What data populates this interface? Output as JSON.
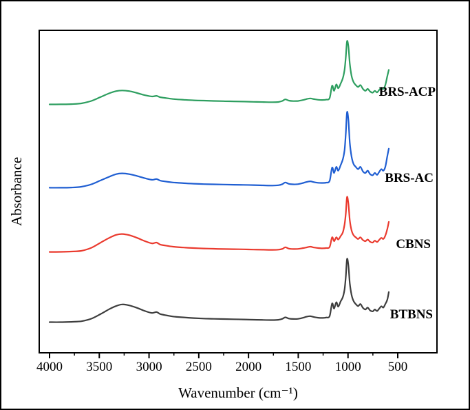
{
  "figure": {
    "background": "#ffffff",
    "border_color": "#000000",
    "axis_color": "#000000"
  },
  "chart_data": {
    "type": "line",
    "title": "",
    "xlabel": "Wavenumber (cm⁻¹)",
    "ylabel": "Absorbance",
    "x_axis": {
      "major_ticks": [
        4000,
        3500,
        3000,
        2500,
        2000,
        1500,
        1000,
        500
      ],
      "minor_ticks": [
        3750,
        3250,
        2750,
        2250,
        1750,
        1250,
        750
      ],
      "reversed": true,
      "range_displayed": [
        4100,
        100
      ],
      "grid": false
    },
    "y_axis": {
      "ticks": [],
      "style": "stacked spectra with vertical offsets, arbitrary absorbance units"
    },
    "legend": "inline labels at right end of each curve",
    "series": [
      {
        "name": "BRS-ACP",
        "color": "#2d9e5f",
        "points": [
          [
            4000,
            0.005
          ],
          [
            3890,
            0.006
          ],
          [
            3780,
            0.01
          ],
          [
            3680,
            0.022
          ],
          [
            3580,
            0.06
          ],
          [
            3490,
            0.12
          ],
          [
            3400,
            0.18
          ],
          [
            3330,
            0.215
          ],
          [
            3270,
            0.225
          ],
          [
            3200,
            0.215
          ],
          [
            3120,
            0.185
          ],
          [
            3040,
            0.15
          ],
          [
            2970,
            0.13
          ],
          [
            2925,
            0.14
          ],
          [
            2890,
            0.12
          ],
          [
            2850,
            0.11
          ],
          [
            2760,
            0.09
          ],
          [
            2650,
            0.078
          ],
          [
            2550,
            0.07
          ],
          [
            2450,
            0.065
          ],
          [
            2350,
            0.06
          ],
          [
            2250,
            0.056
          ],
          [
            2150,
            0.053
          ],
          [
            2050,
            0.05
          ],
          [
            1950,
            0.046
          ],
          [
            1850,
            0.042
          ],
          [
            1760,
            0.04
          ],
          [
            1700,
            0.044
          ],
          [
            1660,
            0.06
          ],
          [
            1630,
            0.085
          ],
          [
            1595,
            0.065
          ],
          [
            1550,
            0.058
          ],
          [
            1500,
            0.06
          ],
          [
            1450,
            0.075
          ],
          [
            1420,
            0.088
          ],
          [
            1380,
            0.1
          ],
          [
            1340,
            0.088
          ],
          [
            1300,
            0.078
          ],
          [
            1260,
            0.075
          ],
          [
            1220,
            0.08
          ],
          [
            1185,
            0.105
          ],
          [
            1160,
            0.3
          ],
          [
            1140,
            0.22
          ],
          [
            1118,
            0.32
          ],
          [
            1098,
            0.26
          ],
          [
            1075,
            0.33
          ],
          [
            1052,
            0.42
          ],
          [
            1035,
            0.55
          ],
          [
            1022,
            0.75
          ],
          [
            1010,
            1.0
          ],
          [
            996,
            0.92
          ],
          [
            982,
            0.65
          ],
          [
            965,
            0.46
          ],
          [
            945,
            0.36
          ],
          [
            922,
            0.31
          ],
          [
            898,
            0.28
          ],
          [
            875,
            0.31
          ],
          [
            850,
            0.25
          ],
          [
            825,
            0.22
          ],
          [
            802,
            0.25
          ],
          [
            778,
            0.21
          ],
          [
            752,
            0.19
          ],
          [
            730,
            0.22
          ],
          [
            708,
            0.195
          ],
          [
            688,
            0.23
          ],
          [
            665,
            0.27
          ],
          [
            645,
            0.25
          ],
          [
            625,
            0.31
          ],
          [
            605,
            0.45
          ],
          [
            590,
            0.55
          ]
        ]
      },
      {
        "name": "BRS-AC",
        "color": "#1f5ed2",
        "points": [
          [
            4000,
            0.005
          ],
          [
            3890,
            0.005
          ],
          [
            3780,
            0.008
          ],
          [
            3680,
            0.018
          ],
          [
            3580,
            0.05
          ],
          [
            3490,
            0.1
          ],
          [
            3400,
            0.15
          ],
          [
            3330,
            0.185
          ],
          [
            3270,
            0.195
          ],
          [
            3200,
            0.185
          ],
          [
            3120,
            0.16
          ],
          [
            3040,
            0.13
          ],
          [
            2970,
            0.11
          ],
          [
            2925,
            0.12
          ],
          [
            2890,
            0.1
          ],
          [
            2850,
            0.09
          ],
          [
            2760,
            0.075
          ],
          [
            2650,
            0.065
          ],
          [
            2550,
            0.058
          ],
          [
            2450,
            0.053
          ],
          [
            2350,
            0.05
          ],
          [
            2250,
            0.047
          ],
          [
            2150,
            0.045
          ],
          [
            2050,
            0.043
          ],
          [
            1950,
            0.04
          ],
          [
            1850,
            0.036
          ],
          [
            1760,
            0.034
          ],
          [
            1700,
            0.038
          ],
          [
            1660,
            0.052
          ],
          [
            1630,
            0.075
          ],
          [
            1595,
            0.056
          ],
          [
            1550,
            0.05
          ],
          [
            1500,
            0.053
          ],
          [
            1450,
            0.068
          ],
          [
            1420,
            0.08
          ],
          [
            1380,
            0.09
          ],
          [
            1340,
            0.078
          ],
          [
            1300,
            0.07
          ],
          [
            1260,
            0.068
          ],
          [
            1220,
            0.072
          ],
          [
            1185,
            0.095
          ],
          [
            1160,
            0.27
          ],
          [
            1140,
            0.2
          ],
          [
            1118,
            0.28
          ],
          [
            1098,
            0.23
          ],
          [
            1075,
            0.3
          ],
          [
            1052,
            0.38
          ],
          [
            1035,
            0.5
          ],
          [
            1022,
            0.72
          ],
          [
            1010,
            1.0
          ],
          [
            996,
            0.9
          ],
          [
            982,
            0.6
          ],
          [
            965,
            0.42
          ],
          [
            945,
            0.32
          ],
          [
            922,
            0.28
          ],
          [
            898,
            0.25
          ],
          [
            875,
            0.28
          ],
          [
            850,
            0.22
          ],
          [
            825,
            0.2
          ],
          [
            802,
            0.23
          ],
          [
            778,
            0.185
          ],
          [
            752,
            0.17
          ],
          [
            730,
            0.2
          ],
          [
            708,
            0.175
          ],
          [
            688,
            0.21
          ],
          [
            665,
            0.25
          ],
          [
            645,
            0.23
          ],
          [
            625,
            0.28
          ],
          [
            605,
            0.42
          ],
          [
            590,
            0.52
          ]
        ]
      },
      {
        "name": "CBNS",
        "color": "#ea3a2e",
        "points": [
          [
            4000,
            0.005
          ],
          [
            3890,
            0.006
          ],
          [
            3780,
            0.012
          ],
          [
            3680,
            0.025
          ],
          [
            3580,
            0.08
          ],
          [
            3490,
            0.17
          ],
          [
            3400,
            0.26
          ],
          [
            3330,
            0.315
          ],
          [
            3270,
            0.33
          ],
          [
            3200,
            0.31
          ],
          [
            3120,
            0.26
          ],
          [
            3040,
            0.2
          ],
          [
            2970,
            0.16
          ],
          [
            2925,
            0.175
          ],
          [
            2890,
            0.14
          ],
          [
            2850,
            0.125
          ],
          [
            2760,
            0.1
          ],
          [
            2650,
            0.085
          ],
          [
            2550,
            0.075
          ],
          [
            2450,
            0.068
          ],
          [
            2350,
            0.062
          ],
          [
            2250,
            0.058
          ],
          [
            2150,
            0.055
          ],
          [
            2050,
            0.052
          ],
          [
            1950,
            0.048
          ],
          [
            1850,
            0.045
          ],
          [
            1760,
            0.042
          ],
          [
            1700,
            0.046
          ],
          [
            1660,
            0.06
          ],
          [
            1630,
            0.09
          ],
          [
            1595,
            0.065
          ],
          [
            1550,
            0.058
          ],
          [
            1500,
            0.06
          ],
          [
            1450,
            0.075
          ],
          [
            1420,
            0.085
          ],
          [
            1380,
            0.1
          ],
          [
            1340,
            0.085
          ],
          [
            1300,
            0.075
          ],
          [
            1260,
            0.07
          ],
          [
            1220,
            0.075
          ],
          [
            1185,
            0.095
          ],
          [
            1160,
            0.27
          ],
          [
            1140,
            0.2
          ],
          [
            1118,
            0.27
          ],
          [
            1098,
            0.23
          ],
          [
            1075,
            0.29
          ],
          [
            1052,
            0.36
          ],
          [
            1035,
            0.5
          ],
          [
            1022,
            0.7
          ],
          [
            1010,
            1.0
          ],
          [
            996,
            0.88
          ],
          [
            982,
            0.58
          ],
          [
            965,
            0.4
          ],
          [
            945,
            0.31
          ],
          [
            922,
            0.27
          ],
          [
            898,
            0.24
          ],
          [
            875,
            0.27
          ],
          [
            850,
            0.22
          ],
          [
            825,
            0.2
          ],
          [
            802,
            0.23
          ],
          [
            778,
            0.19
          ],
          [
            752,
            0.175
          ],
          [
            730,
            0.21
          ],
          [
            708,
            0.185
          ],
          [
            688,
            0.22
          ],
          [
            665,
            0.26
          ],
          [
            645,
            0.24
          ],
          [
            625,
            0.3
          ],
          [
            605,
            0.42
          ],
          [
            590,
            0.55
          ]
        ]
      },
      {
        "name": "BTBNS",
        "color": "#3d3d3d",
        "points": [
          [
            4000,
            0.005
          ],
          [
            3890,
            0.005
          ],
          [
            3780,
            0.01
          ],
          [
            3680,
            0.02
          ],
          [
            3580,
            0.06
          ],
          [
            3490,
            0.13
          ],
          [
            3400,
            0.21
          ],
          [
            3330,
            0.26
          ],
          [
            3270,
            0.285
          ],
          [
            3200,
            0.27
          ],
          [
            3120,
            0.23
          ],
          [
            3040,
            0.18
          ],
          [
            2970,
            0.15
          ],
          [
            2925,
            0.165
          ],
          [
            2890,
            0.135
          ],
          [
            2850,
            0.12
          ],
          [
            2760,
            0.095
          ],
          [
            2650,
            0.08
          ],
          [
            2550,
            0.07
          ],
          [
            2450,
            0.062
          ],
          [
            2350,
            0.058
          ],
          [
            2250,
            0.054
          ],
          [
            2150,
            0.051
          ],
          [
            2050,
            0.048
          ],
          [
            1950,
            0.044
          ],
          [
            1850,
            0.04
          ],
          [
            1760,
            0.038
          ],
          [
            1700,
            0.042
          ],
          [
            1660,
            0.058
          ],
          [
            1630,
            0.082
          ],
          [
            1595,
            0.062
          ],
          [
            1550,
            0.055
          ],
          [
            1500,
            0.058
          ],
          [
            1450,
            0.075
          ],
          [
            1420,
            0.09
          ],
          [
            1380,
            0.1
          ],
          [
            1340,
            0.085
          ],
          [
            1300,
            0.075
          ],
          [
            1260,
            0.072
          ],
          [
            1220,
            0.078
          ],
          [
            1185,
            0.1
          ],
          [
            1160,
            0.3
          ],
          [
            1140,
            0.22
          ],
          [
            1118,
            0.32
          ],
          [
            1098,
            0.25
          ],
          [
            1075,
            0.33
          ],
          [
            1052,
            0.4
          ],
          [
            1035,
            0.52
          ],
          [
            1022,
            0.72
          ],
          [
            1010,
            1.0
          ],
          [
            996,
            0.9
          ],
          [
            982,
            0.62
          ],
          [
            965,
            0.44
          ],
          [
            945,
            0.34
          ],
          [
            922,
            0.29
          ],
          [
            898,
            0.26
          ],
          [
            875,
            0.29
          ],
          [
            850,
            0.23
          ],
          [
            825,
            0.205
          ],
          [
            802,
            0.235
          ],
          [
            778,
            0.19
          ],
          [
            752,
            0.175
          ],
          [
            730,
            0.205
          ],
          [
            708,
            0.18
          ],
          [
            688,
            0.215
          ],
          [
            665,
            0.255
          ],
          [
            645,
            0.235
          ],
          [
            625,
            0.29
          ],
          [
            605,
            0.36
          ],
          [
            590,
            0.48
          ]
        ]
      }
    ]
  }
}
